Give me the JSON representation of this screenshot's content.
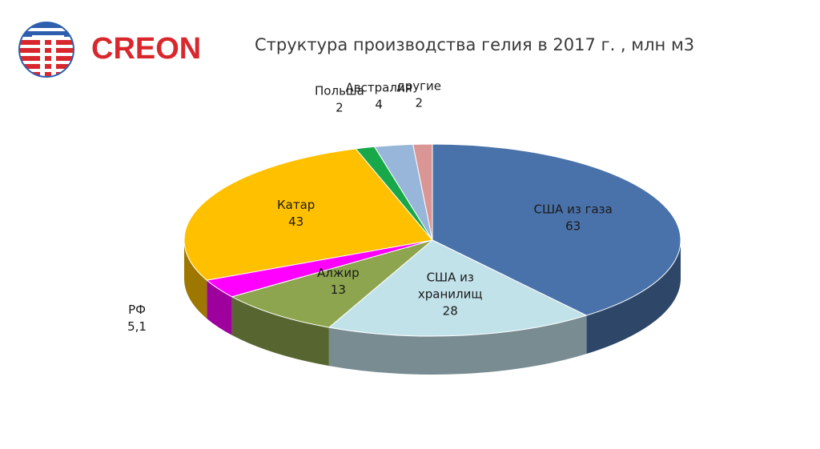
{
  "header": {
    "logo_text": "CREON",
    "title": "Структура производства гелия в 2017 г. , млн м3"
  },
  "colors": {
    "brand_red": "#d9272e",
    "brand_blue": "#2e5fae"
  },
  "chart_data": {
    "type": "pie",
    "title": "Структура производства гелия в 2017 г. , млн м3",
    "style": "3d",
    "slices": [
      {
        "name": "США из газа",
        "value": 63,
        "value_label": "63",
        "color": "#4a72aa"
      },
      {
        "name": "США из хранилищ",
        "value": 28,
        "value_label": "28",
        "color": "#c2e2ea"
      },
      {
        "name": "Алжир",
        "value": 13,
        "value_label": "13",
        "color": "#8da54e"
      },
      {
        "name": "РФ",
        "value": 5.1,
        "value_label": "5,1",
        "color": "#ff00ff"
      },
      {
        "name": "Катар",
        "value": 43,
        "value_label": "43",
        "color": "#ffc000"
      },
      {
        "name": "Польша",
        "value": 2,
        "value_label": "2",
        "color": "#18a84a"
      },
      {
        "name": "Австралия",
        "value": 4,
        "value_label": "4",
        "color": "#97b6d9"
      },
      {
        "name": "другие",
        "value": 2,
        "value_label": "2",
        "color": "#d99694"
      }
    ]
  }
}
